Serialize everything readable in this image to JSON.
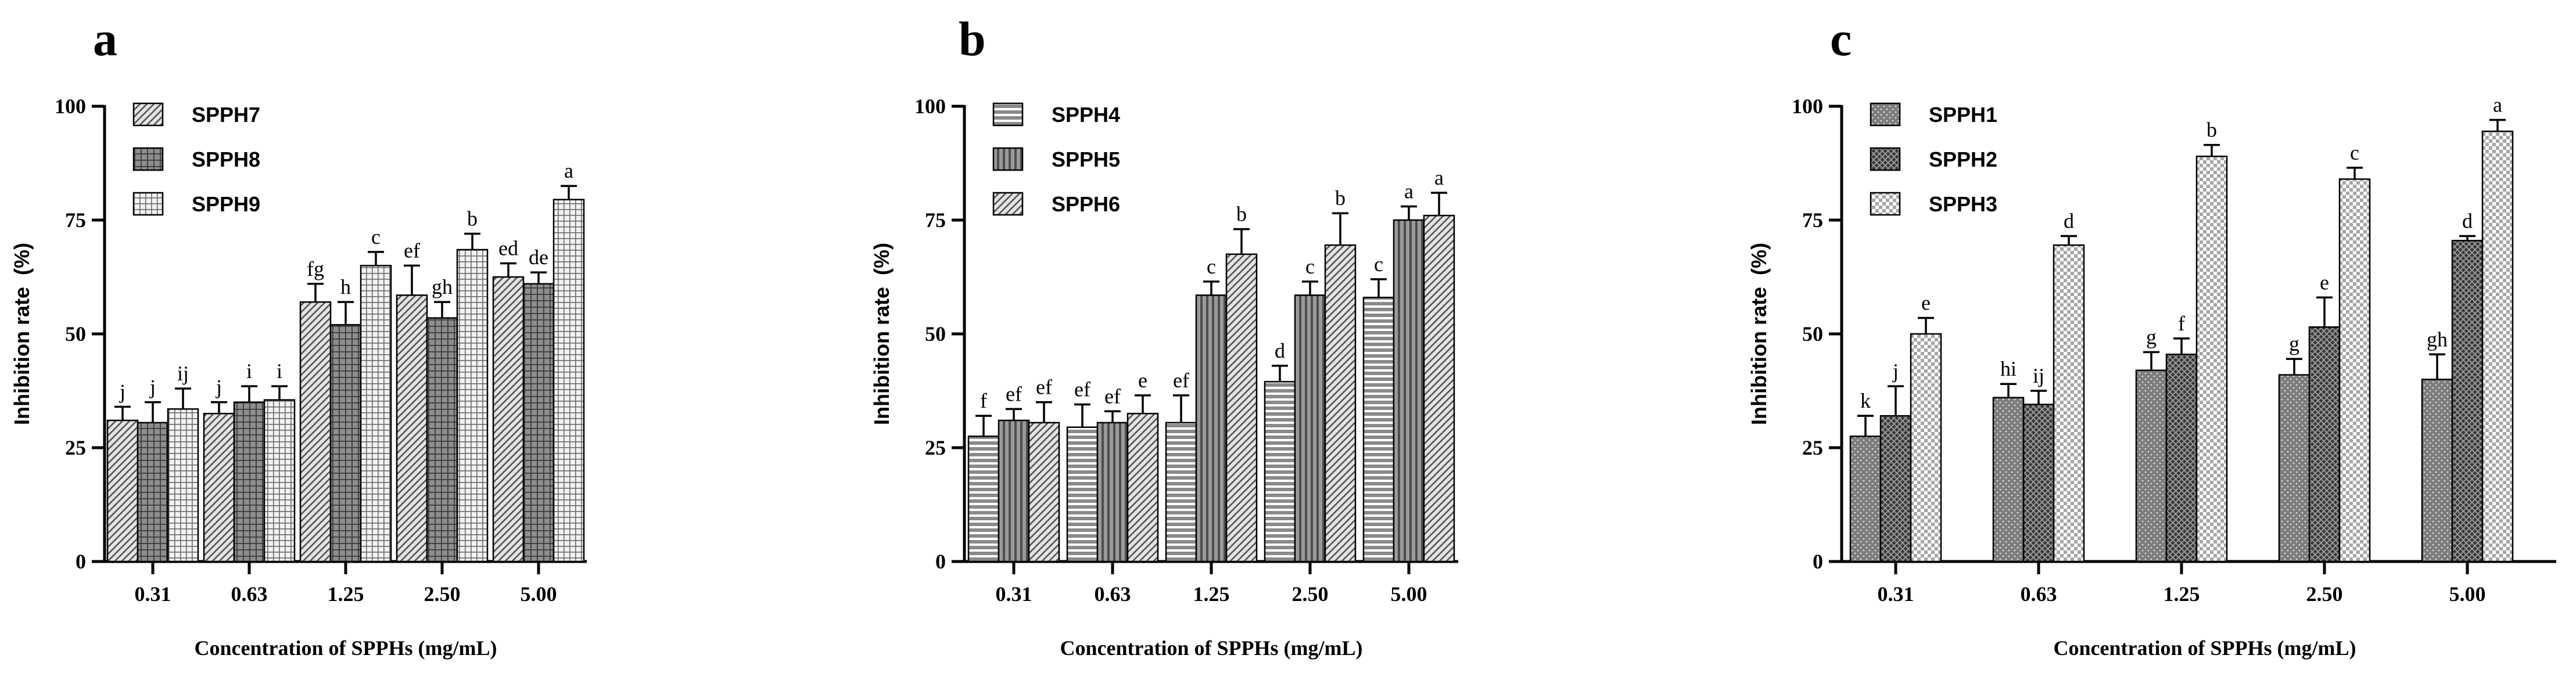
{
  "figure": {
    "panels": [
      "a",
      "b",
      "c"
    ]
  },
  "chart_data": [
    {
      "panel_label": "a",
      "type": "bar",
      "xlabel": "Concentration of SPPHs (mg/mL)",
      "ylabel": "Inhibition rate  (%)",
      "categories": [
        "0.31",
        "0.63",
        "1.25",
        "2.50",
        "5.00"
      ],
      "ylim": [
        0,
        100
      ],
      "yticks": [
        "0",
        "25",
        "50",
        "75",
        "100"
      ],
      "legend_position": "top-left",
      "series": [
        {
          "name": "SPPH7",
          "pattern": "diag",
          "values": [
            31,
            32.5,
            57,
            58.5,
            62.5
          ],
          "errors": [
            3,
            2.5,
            4,
            6.5,
            3
          ],
          "letters": [
            "j",
            "j",
            "fg",
            "ef",
            "ed"
          ]
        },
        {
          "name": "SPPH8",
          "pattern": "grid",
          "values": [
            30.5,
            35,
            52,
            53.5,
            61
          ],
          "errors": [
            4.5,
            3.5,
            5,
            3.5,
            2.5
          ],
          "letters": [
            "j",
            "i",
            "h",
            "gh",
            "de"
          ]
        },
        {
          "name": "SPPH9",
          "pattern": "dotgrid",
          "values": [
            33.5,
            35.5,
            65,
            68.5,
            79.5
          ],
          "errors": [
            4.5,
            3,
            3,
            3.5,
            3
          ],
          "letters": [
            "ij",
            "i",
            "c",
            "b",
            "a"
          ]
        }
      ]
    },
    {
      "panel_label": "b",
      "type": "bar",
      "xlabel": "Concentration of SPPHs (mg/mL)",
      "ylabel": "Inhibition rate  (%)",
      "categories": [
        "0.31",
        "0.63",
        "1.25",
        "2.50",
        "5.00"
      ],
      "ylim": [
        0,
        100
      ],
      "yticks": [
        "0",
        "25",
        "50",
        "75",
        "100"
      ],
      "legend_position": "top-left",
      "series": [
        {
          "name": "SPPH4",
          "pattern": "hlines",
          "values": [
            27.5,
            29.5,
            30.5,
            39.5,
            58
          ],
          "errors": [
            4.5,
            5,
            6,
            3.5,
            4
          ],
          "letters": [
            "f",
            "ef",
            "ef",
            "d",
            "c"
          ]
        },
        {
          "name": "SPPH5",
          "pattern": "vlines",
          "values": [
            31,
            30.5,
            58.5,
            58.5,
            75
          ],
          "errors": [
            2.5,
            2.5,
            3,
            3,
            3
          ],
          "letters": [
            "ef",
            "ef",
            "c",
            "c",
            "a"
          ]
        },
        {
          "name": "SPPH6",
          "pattern": "diag",
          "values": [
            30.5,
            32.5,
            67.5,
            69.5,
            76
          ],
          "errors": [
            4.5,
            4,
            5.5,
            7,
            5
          ],
          "letters": [
            "ef",
            "e",
            "b",
            "b",
            "a"
          ]
        }
      ]
    },
    {
      "panel_label": "c",
      "type": "bar",
      "xlabel": "Concentration of SPPHs (mg/mL)",
      "ylabel": "Inhibition rate  (%)",
      "categories": [
        "0.31",
        "0.63",
        "1.25",
        "2.50",
        "5.00"
      ],
      "ylim": [
        0,
        100
      ],
      "yticks": [
        "0",
        "25",
        "50",
        "75",
        "100"
      ],
      "legend_position": "top-left",
      "series": [
        {
          "name": "SPPH1",
          "pattern": "dots",
          "values": [
            27.5,
            36,
            42,
            41,
            40
          ],
          "errors": [
            4.5,
            3,
            4,
            3.5,
            5.5
          ],
          "letters": [
            "k",
            "hi",
            "g",
            "g",
            "gh"
          ]
        },
        {
          "name": "SPPH2",
          "pattern": "cross",
          "values": [
            32,
            34.5,
            45.5,
            51.5,
            70.5
          ],
          "errors": [
            6.5,
            3,
            3.5,
            6.5,
            1
          ],
          "letters": [
            "j",
            "ij",
            "f",
            "e",
            "d"
          ]
        },
        {
          "name": "SPPH3",
          "pattern": "checker",
          "values": [
            50,
            69.5,
            89,
            84,
            94.5
          ],
          "errors": [
            3.5,
            2,
            2.5,
            2.5,
            2.5
          ],
          "letters": [
            "e",
            "d",
            "b",
            "c",
            "a"
          ]
        }
      ]
    }
  ]
}
